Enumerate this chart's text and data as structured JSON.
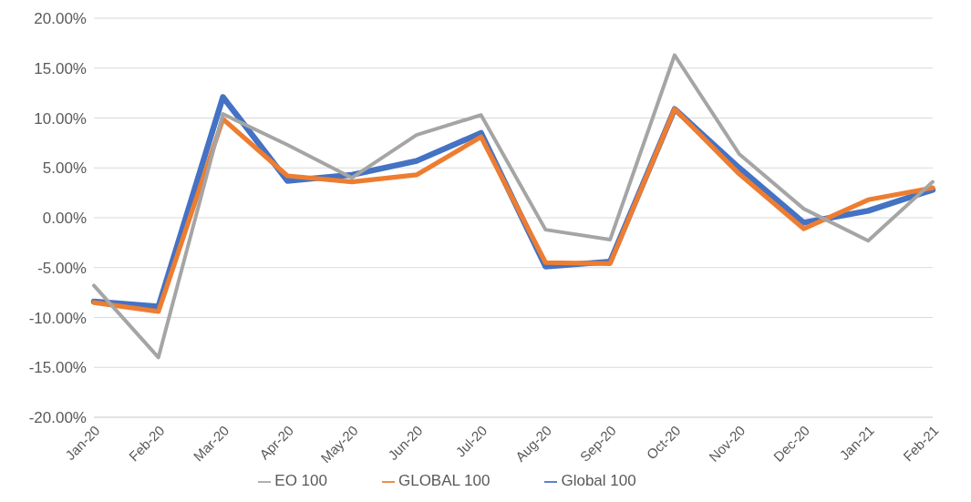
{
  "chart_data": {
    "type": "line",
    "categories": [
      "Jan-20",
      "Feb-20",
      "Mar-20",
      "Apr-20",
      "May-20",
      "Jun-20",
      "Jul-20",
      "Aug-20",
      "Sep-20",
      "Oct-20",
      "Nov-20",
      "Dec-20",
      "Jan-21",
      "Feb-21"
    ],
    "series": [
      {
        "name": "Global 100",
        "color": "#4472c4",
        "values": [
          -8.4,
          -8.9,
          12.1,
          3.7,
          4.3,
          5.7,
          8.5,
          -4.9,
          -4.4,
          10.9,
          5.0,
          -0.5,
          0.7,
          2.8
        ]
      },
      {
        "name": "GLOBAL 100",
        "color": "#ed7d31",
        "values": [
          -8.5,
          -9.4,
          9.9,
          4.2,
          3.6,
          4.3,
          8.1,
          -4.5,
          -4.6,
          10.9,
          4.4,
          -1.1,
          1.8,
          3.0
        ]
      },
      {
        "name": "EO 100",
        "color": "#a5a5a5",
        "values": [
          -6.8,
          -14.0,
          10.4,
          7.3,
          4.0,
          8.3,
          10.3,
          -1.2,
          -2.2,
          16.3,
          6.4,
          0.9,
          -2.3,
          3.6
        ]
      }
    ],
    "ylim": [
      -20,
      20
    ],
    "yticks": [
      {
        "value": -20,
        "label": "-20.00%"
      },
      {
        "value": -15,
        "label": "-15.00%"
      },
      {
        "value": -10,
        "label": "-10.00%"
      },
      {
        "value": -5,
        "label": "-5.00%"
      },
      {
        "value": 0,
        "label": "0.00%"
      },
      {
        "value": 5,
        "label": "5.00%"
      },
      {
        "value": 10,
        "label": "10.00%"
      },
      {
        "value": 15,
        "label": "15.00%"
      },
      {
        "value": 20,
        "label": "20.00%"
      }
    ],
    "grid": "y",
    "legend": "bottom",
    "marker": "none",
    "line_style": "solid"
  }
}
